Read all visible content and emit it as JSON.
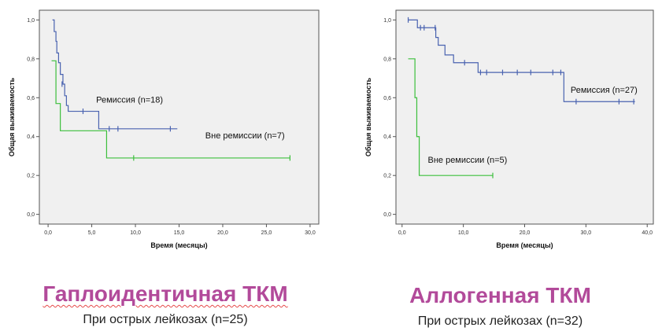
{
  "colors": {
    "remission": "#4a63b0",
    "non_remission": "#3cbf3c",
    "title_left": "#b24a9a",
    "title_right": "#b24a9a"
  },
  "panels": [
    {
      "title": "Гаплоидентичная ТКМ",
      "subtitle": "При острых лейкозах (n=25)"
    },
    {
      "title": "Аллогенная ТКМ",
      "subtitle": "При острых лейкозах (n=32)"
    }
  ],
  "chart_data": [
    {
      "type": "line",
      "step": true,
      "xlabel": "Время (месяцы)",
      "ylabel": "Общая выживаемость",
      "xlim": [
        -1,
        31
      ],
      "ylim": [
        -0.05,
        1.05
      ],
      "xticks": [
        "0,0",
        "5,0",
        "10,0",
        "15,0",
        "20,0",
        "25,0",
        "30,0"
      ],
      "xtick_values": [
        0,
        5,
        10,
        15,
        20,
        25,
        30
      ],
      "yticks": [
        "0,0",
        "0,2",
        "0,4",
        "0,6",
        "0,8",
        "1,0"
      ],
      "ytick_values": [
        0,
        0.2,
        0.4,
        0.6,
        0.8,
        1.0
      ],
      "grid": false,
      "series": [
        {
          "name": "Ремиссия (n=18)",
          "color_key": "remission",
          "points": [
            [
              0.5,
              1.0
            ],
            [
              0.7,
              0.94
            ],
            [
              0.9,
              0.89
            ],
            [
              1.0,
              0.83
            ],
            [
              1.2,
              0.78
            ],
            [
              1.4,
              0.72
            ],
            [
              1.7,
              0.67
            ],
            [
              1.9,
              0.61
            ],
            [
              2.1,
              0.56
            ],
            [
              2.3,
              0.53
            ],
            [
              5.8,
              0.44
            ],
            [
              14.8,
              0.44
            ]
          ],
          "censored": [
            [
              1.6,
              0.67
            ],
            [
              4.0,
              0.53
            ],
            [
              7.0,
              0.44
            ],
            [
              8.0,
              0.44
            ],
            [
              14.0,
              0.44
            ]
          ],
          "label_at": [
            5.5,
            0.575
          ]
        },
        {
          "name": "Вне ремиссии (n=7)",
          "color_key": "non_remission",
          "points": [
            [
              0.4,
              0.79
            ],
            [
              0.9,
              0.57
            ],
            [
              1.4,
              0.43
            ],
            [
              6.7,
              0.29
            ],
            [
              27.7,
              0.29
            ]
          ],
          "censored": [
            [
              9.8,
              0.29
            ],
            [
              27.7,
              0.29
            ]
          ],
          "label_at": [
            18.0,
            0.39
          ]
        }
      ]
    },
    {
      "type": "line",
      "step": true,
      "xlabel": "Время (месяцы)",
      "ylabel": "Общая выживаемость",
      "xlim": [
        -1,
        41
      ],
      "ylim": [
        -0.05,
        1.05
      ],
      "xticks": [
        "0,0",
        "10,0",
        "20,0",
        "30,0",
        "40,0"
      ],
      "xtick_values": [
        0,
        10,
        20,
        30,
        40
      ],
      "yticks": [
        "0,0",
        "0,2",
        "0,4",
        "0,6",
        "0,8",
        "1,0"
      ],
      "ytick_values": [
        0,
        0.2,
        0.4,
        0.6,
        0.8,
        1.0
      ],
      "grid": false,
      "series": [
        {
          "name": "Ремиссия (n=27)",
          "color_key": "remission",
          "points": [
            [
              1.0,
              1.0
            ],
            [
              2.5,
              0.96
            ],
            [
              5.5,
              0.91
            ],
            [
              5.9,
              0.87
            ],
            [
              7.0,
              0.82
            ],
            [
              8.4,
              0.78
            ],
            [
              12.4,
              0.73
            ],
            [
              26.4,
              0.58
            ],
            [
              38.0,
              0.58
            ]
          ],
          "censored": [
            [
              1.0,
              1.0
            ],
            [
              3.0,
              0.96
            ],
            [
              3.6,
              0.96
            ],
            [
              5.4,
              0.96
            ],
            [
              10.2,
              0.78
            ],
            [
              12.8,
              0.73
            ],
            [
              13.8,
              0.73
            ],
            [
              16.4,
              0.73
            ],
            [
              18.8,
              0.73
            ],
            [
              21.0,
              0.73
            ],
            [
              24.6,
              0.73
            ],
            [
              25.9,
              0.73
            ],
            [
              28.4,
              0.58
            ],
            [
              35.4,
              0.58
            ],
            [
              37.8,
              0.58
            ]
          ],
          "label_at": [
            27.5,
            0.625
          ]
        },
        {
          "name": "Вне ремиссии (n=5)",
          "color_key": "non_remission",
          "points": [
            [
              1.0,
              0.8
            ],
            [
              2.1,
              0.6
            ],
            [
              2.4,
              0.4
            ],
            [
              2.8,
              0.2
            ],
            [
              14.8,
              0.2
            ]
          ],
          "censored": [
            [
              14.8,
              0.2
            ]
          ],
          "label_at": [
            4.2,
            0.265
          ]
        }
      ]
    }
  ]
}
